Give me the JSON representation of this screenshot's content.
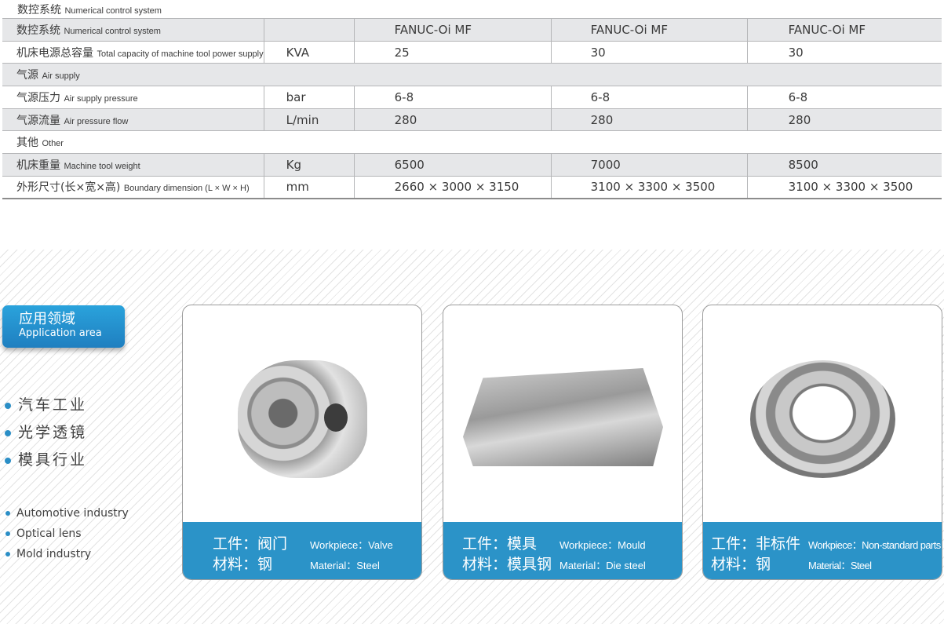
{
  "section_title": {
    "cn": "数控系统",
    "en": "Numerical control system"
  },
  "table": {
    "rows": [
      {
        "cn": "数控系统",
        "en": "Numerical control system",
        "unit": "",
        "v": [
          "FANUC-Oi MF",
          "FANUC-Oi MF",
          "FANUC-Oi MF"
        ],
        "gray": true
      },
      {
        "cn": "机床电源总容量",
        "en": "Total capacity of machine tool power supply",
        "unit": "KVA",
        "v": [
          "25",
          "30",
          "30"
        ],
        "gray": false
      },
      {
        "cn": "气源",
        "en": "Air supply",
        "section": true,
        "gray": true
      },
      {
        "cn": "气源压力",
        "en": "Air supply pressure",
        "unit": "bar",
        "v": [
          "6-8",
          "6-8",
          "6-8"
        ],
        "gray": false
      },
      {
        "cn": "气源流量",
        "en": "Air pressure flow",
        "unit": "L/min",
        "v": [
          "280",
          "280",
          "280"
        ],
        "gray": true
      },
      {
        "cn": "其他",
        "en": "Other",
        "section": true,
        "gray": false
      },
      {
        "cn": "机床重量",
        "en": "Machine tool weight",
        "unit": "Kg",
        "v": [
          "6500",
          "7000",
          "8500"
        ],
        "gray": true
      },
      {
        "cn": "外形尺寸(长×宽×高)",
        "en": "Boundary dimension (L × W × H)",
        "unit": "mm",
        "v": [
          "2660 × 3000 × 3150",
          "3100 × 3300 × 3500",
          "3100 × 3300 × 3500"
        ],
        "gray": false
      }
    ]
  },
  "application": {
    "badge_cn": "应用领域",
    "badge_en": "Application area",
    "items_cn": [
      "汽车工业",
      "光学透镜",
      "模具行业"
    ],
    "items_en": [
      "Automotive industry",
      "Optical lens",
      "Mold industry"
    ]
  },
  "cards": [
    {
      "w_cn": "工件：阀门",
      "m_cn": "材料：钢",
      "w_en": "Workpiece：Valve",
      "m_en": "Material：Steel"
    },
    {
      "w_cn": "工件：模具",
      "m_cn": "材料：模具钢",
      "w_en": "Workpiece：Mould",
      "m_en": "Material：Die steel"
    },
    {
      "w_cn": "工件：非标件",
      "m_cn": "材料：钢",
      "w_en": "Workpiece：Non-standard parts",
      "m_en": "Material：Steel"
    }
  ],
  "colors": {
    "accent": "#2b93c8",
    "row_gray": "#e6e7e9"
  }
}
